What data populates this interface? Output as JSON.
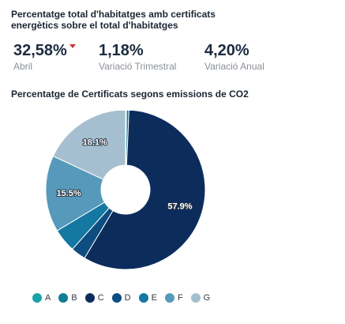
{
  "header": {
    "title": "Percentatge total d'habitatges amb certificats energètics sobre el total d'habitatges"
  },
  "kpis": [
    {
      "value": "32,58%",
      "label": "Abril",
      "trend": "down",
      "trend_color": "#d0312d"
    },
    {
      "value": "1,18%",
      "label": "Variació Trimestral"
    },
    {
      "value": "4,20%",
      "label": "Variació Anual"
    }
  ],
  "chart_data": {
    "type": "pie",
    "title": "Percentatge de Certificats segons emissions de CO2",
    "donut": true,
    "slices": [
      {
        "name": "A",
        "value": 0.2,
        "color": "#19a3a8",
        "label": ""
      },
      {
        "name": "B",
        "value": 0.5,
        "color": "#0e7e93",
        "label": ""
      },
      {
        "name": "C",
        "value": 57.9,
        "color": "#0c2d5c",
        "label": "57.9%"
      },
      {
        "name": "D",
        "value": 3.0,
        "color": "#0d4d80",
        "label": ""
      },
      {
        "name": "E",
        "value": 4.8,
        "color": "#1478a3",
        "label": ""
      },
      {
        "name": "F",
        "value": 15.5,
        "color": "#5699bb",
        "label": "15.5%"
      },
      {
        "name": "G",
        "value": 18.1,
        "color": "#a6bfd0",
        "label": "18.1%"
      }
    ],
    "legend_position": "bottom"
  }
}
